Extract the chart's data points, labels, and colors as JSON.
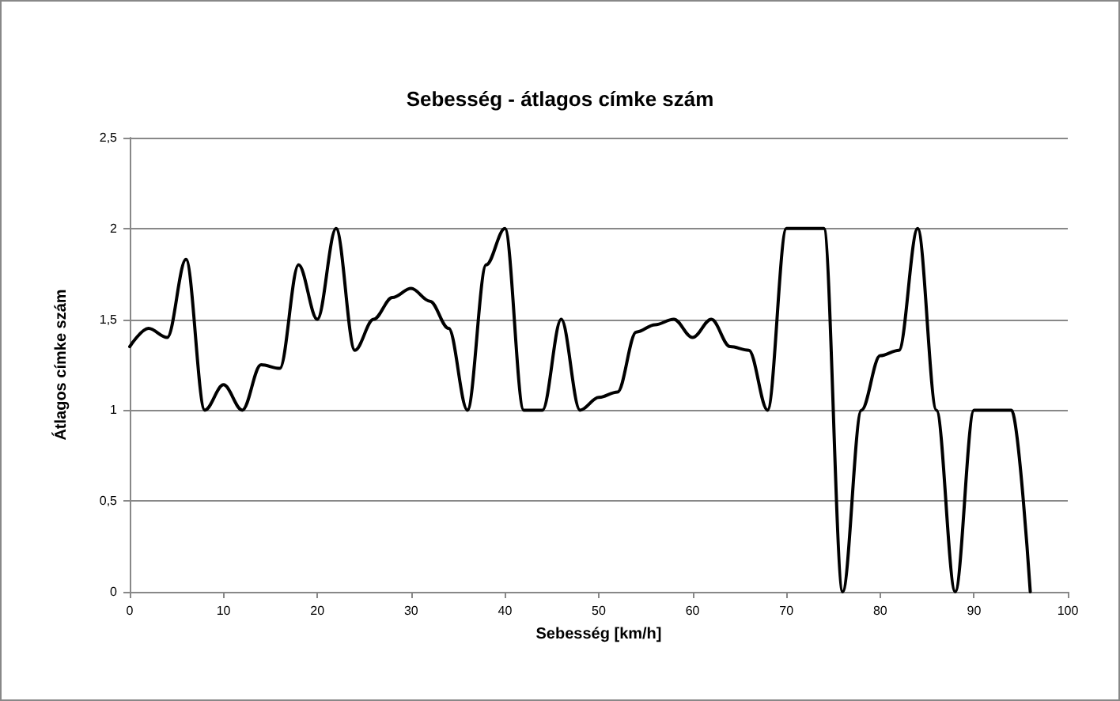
{
  "chart_data": {
    "type": "line",
    "title": "Sebesség - átlagos címke szám",
    "xlabel": "Sebesség [km/h]",
    "ylabel": "Átlagos címke szám",
    "x": [
      0,
      2,
      4,
      6,
      8,
      10,
      12,
      14,
      16,
      18,
      20,
      22,
      24,
      26,
      28,
      30,
      32,
      34,
      36,
      38,
      40,
      42,
      44,
      46,
      48,
      50,
      52,
      54,
      56,
      58,
      60,
      62,
      64,
      66,
      68,
      70,
      72,
      74,
      76,
      78,
      80,
      82,
      84,
      86,
      88,
      90,
      92,
      94,
      96
    ],
    "series": [
      {
        "color": "#000000",
        "values": [
          1.35,
          1.45,
          1.4,
          1.83,
          1.0,
          1.14,
          1.0,
          1.25,
          1.23,
          1.8,
          1.5,
          2.0,
          1.33,
          1.5,
          1.62,
          1.67,
          1.6,
          1.45,
          1.0,
          1.8,
          2.0,
          1.0,
          1.0,
          1.5,
          1.0,
          1.07,
          1.1,
          1.43,
          1.47,
          1.5,
          1.4,
          1.5,
          1.35,
          1.33,
          1.0,
          2.0,
          2.0,
          2.0,
          0,
          1.0,
          1.3,
          1.33,
          2.0,
          1.0,
          0,
          1.0,
          1.0,
          1.0,
          0
        ]
      }
    ],
    "xlim": [
      0,
      100
    ],
    "xticks": [
      0,
      10,
      20,
      30,
      40,
      50,
      60,
      70,
      80,
      90,
      100
    ],
    "ylim": [
      0,
      2.5
    ],
    "yticks": [
      {
        "value": 0,
        "label": "0"
      },
      {
        "value": 0.5,
        "label": "0,5"
      },
      {
        "value": 1,
        "label": "1"
      },
      {
        "value": 1.5,
        "label": "1,5"
      },
      {
        "value": 2,
        "label": "2"
      },
      {
        "value": 2.5,
        "label": "2,5"
      }
    ],
    "grid": "y",
    "marker": "none",
    "line_style": "solid"
  }
}
